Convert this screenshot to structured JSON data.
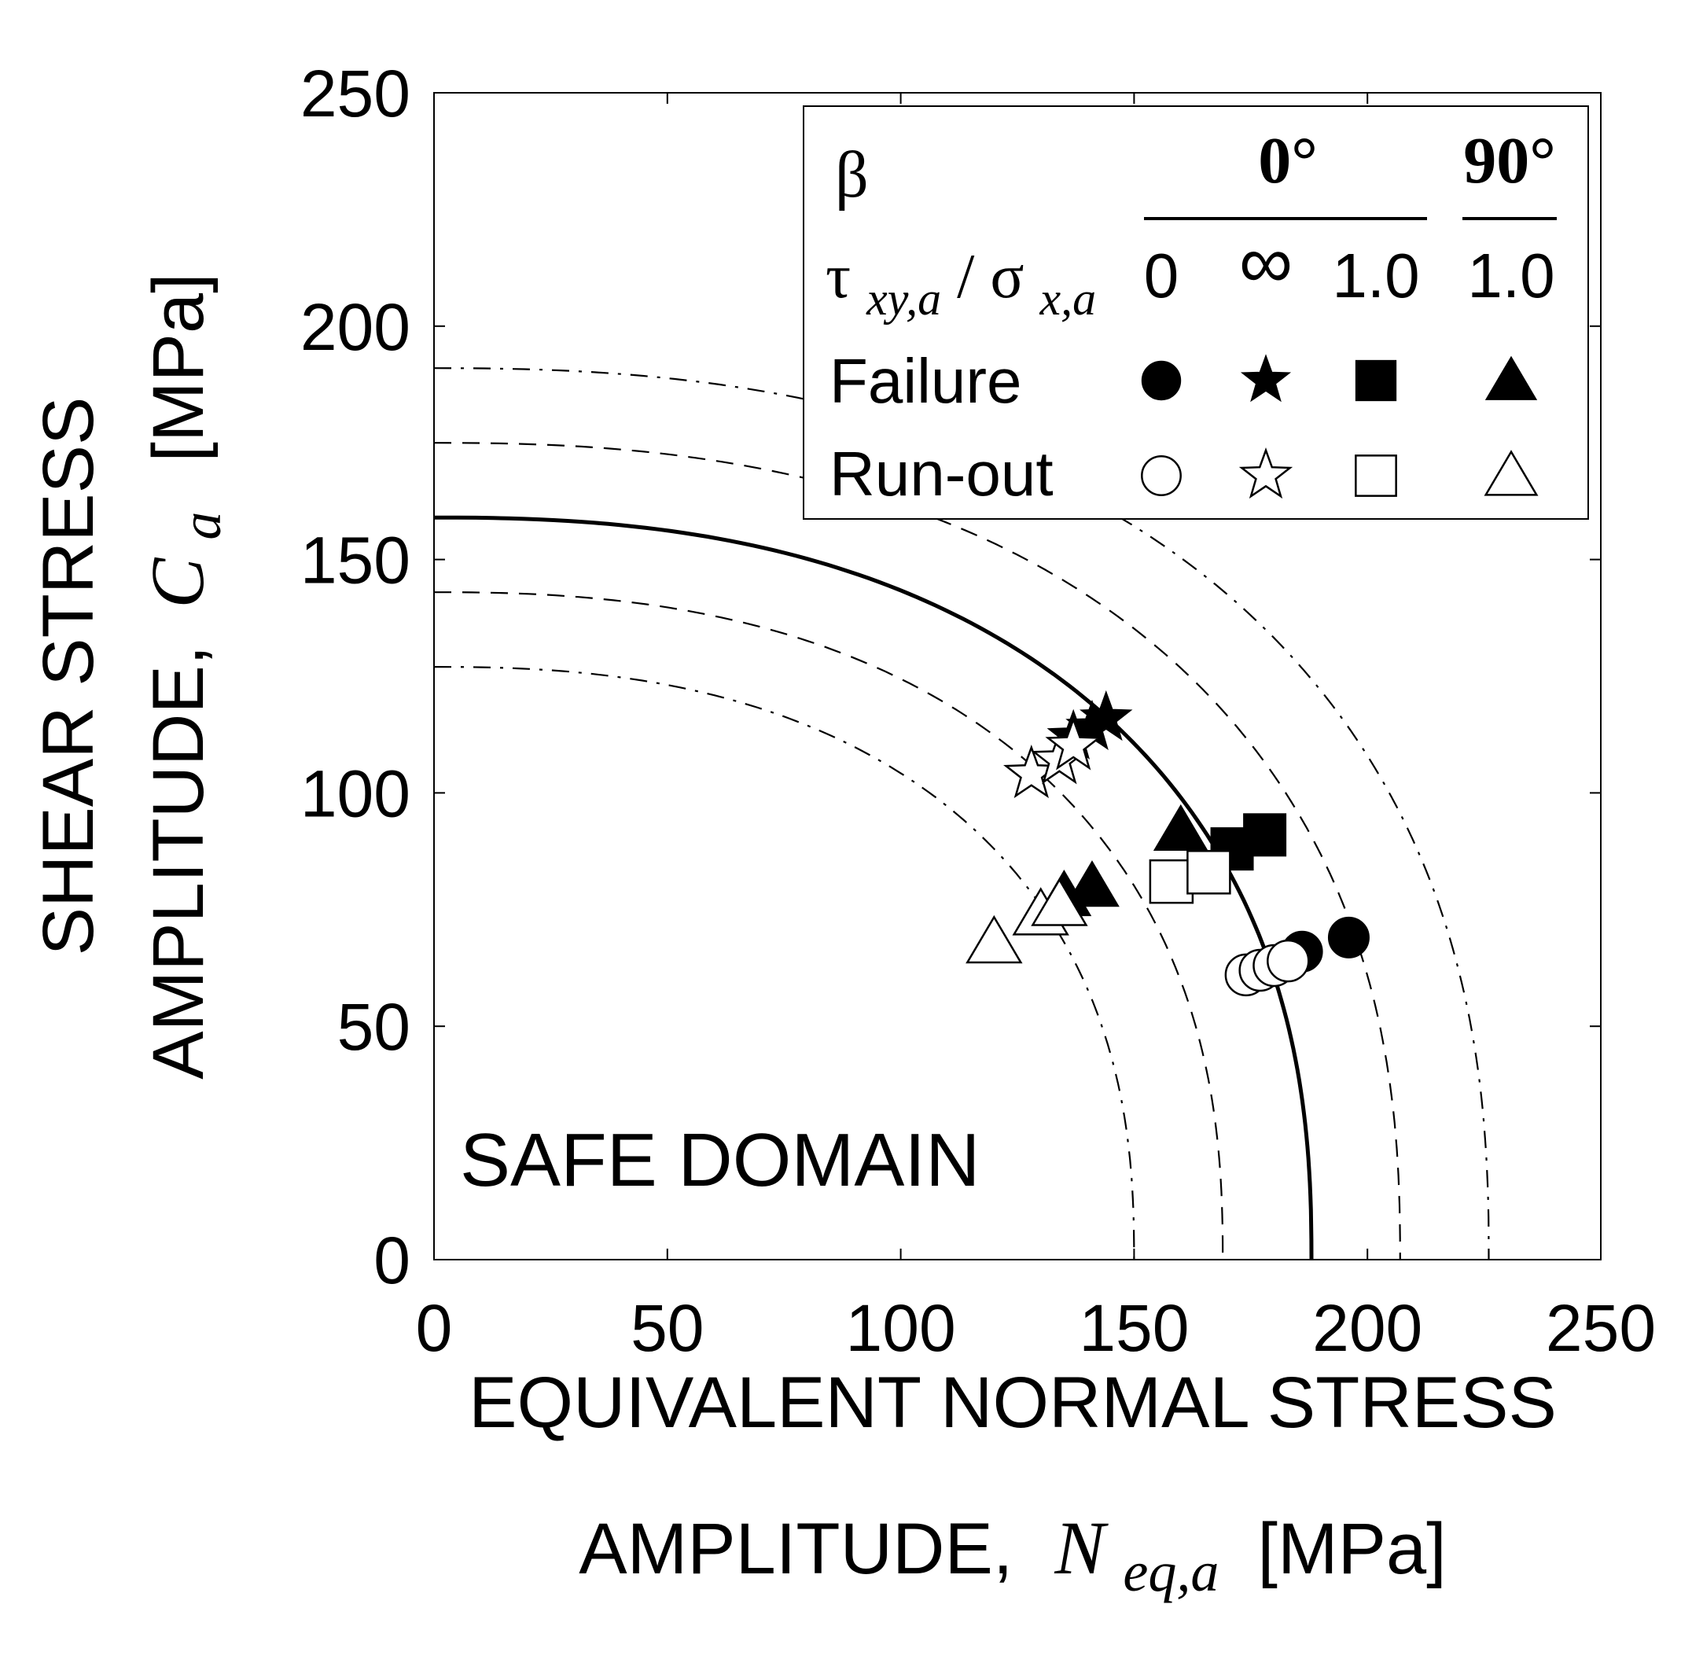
{
  "chart_data": {
    "type": "scatter",
    "xlabel": {
      "line1": "EQUIVALENT  NORMAL STRESS",
      "line2_prefix": "AMPLITUDE,",
      "line2_symbol": "N",
      "line2_subscript": "eq,a",
      "line2_unit": "[MPa]"
    },
    "ylabel": {
      "line1": "SHEAR STRESS",
      "line2_prefix": "AMPLITUDE,",
      "line2_symbol": "C",
      "line2_subscript": "a",
      "line2_unit": "[MPa]"
    },
    "xlim": [
      0,
      250
    ],
    "ylim": [
      0,
      250
    ],
    "xticks": [
      0,
      50,
      100,
      150,
      200,
      250
    ],
    "yticks": [
      0,
      50,
      100,
      150,
      200,
      250
    ],
    "grid": false,
    "annotation": "SAFE DOMAIN",
    "legend": {
      "position": "top-right",
      "beta_label": "β",
      "group_0": "0°",
      "group_90": "90°",
      "ratio_label_tau": "τ",
      "ratio_label_tau_sub": "xy,a",
      "ratio_label_slash": "/",
      "ratio_label_sigma": "σ",
      "ratio_label_sigma_sub": "x,a",
      "ratio_values": [
        "0",
        "∞",
        "1.0",
        "1.0"
      ],
      "failure_label": "Failure",
      "runout_label": "Run-out"
    },
    "curves": [
      {
        "style": "solid",
        "x_intercept": 188,
        "y_intercept": 159
      },
      {
        "style": "dashed",
        "x_intercept": 207,
        "y_intercept": 175
      },
      {
        "style": "dashed",
        "x_intercept": 169,
        "y_intercept": 143
      },
      {
        "style": "dashdot",
        "x_intercept": 226,
        "y_intercept": 191
      },
      {
        "style": "dashdot",
        "x_intercept": 150,
        "y_intercept": 127
      }
    ],
    "series": [
      {
        "marker": "circle",
        "filled": true,
        "points": [
          [
            186,
            66
          ],
          [
            196,
            69
          ]
        ]
      },
      {
        "marker": "circle",
        "filled": false,
        "points": [
          [
            174,
            61
          ],
          [
            177,
            62
          ],
          [
            180,
            63
          ],
          [
            183,
            64
          ]
        ]
      },
      {
        "marker": "star",
        "filled": true,
        "points": [
          [
            137,
            112
          ],
          [
            141,
            114
          ],
          [
            144,
            116
          ]
        ]
      },
      {
        "marker": "star",
        "filled": false,
        "points": [
          [
            128,
            104
          ],
          [
            134,
            107
          ],
          [
            137,
            110
          ]
        ]
      },
      {
        "marker": "square",
        "filled": true,
        "points": [
          [
            171,
            88
          ],
          [
            178,
            91
          ]
        ]
      },
      {
        "marker": "square",
        "filled": false,
        "points": [
          [
            158,
            81
          ],
          [
            166,
            83
          ]
        ]
      },
      {
        "marker": "triangle",
        "filled": true,
        "points": [
          [
            135,
            78
          ],
          [
            141,
            80
          ],
          [
            160,
            92
          ]
        ]
      },
      {
        "marker": "triangle",
        "filled": false,
        "points": [
          [
            120,
            68
          ],
          [
            130,
            74
          ],
          [
            134,
            76
          ]
        ]
      }
    ]
  }
}
